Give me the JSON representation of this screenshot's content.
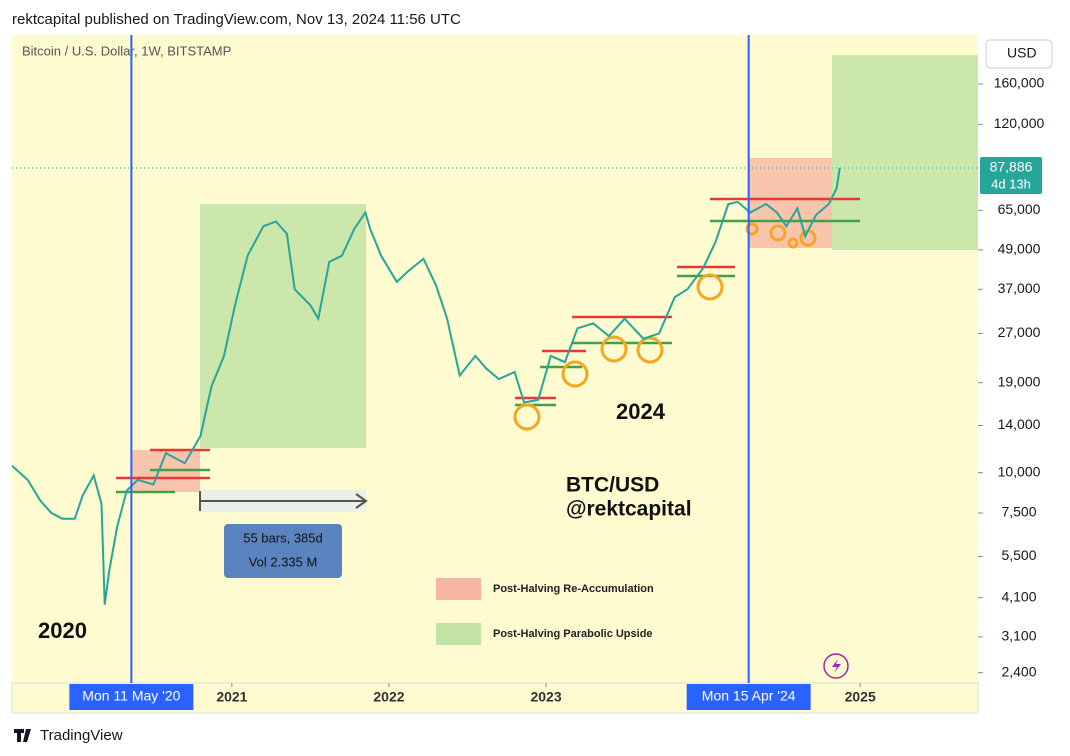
{
  "header": {
    "publisher": "rektcapital published on TradingView.com, Nov 13, 2024 11:56 UTC"
  },
  "chart_data": {
    "type": "line",
    "title": "Bitcoin / U.S. Dollar, 1W, BITSTAMP",
    "y_axis_label": "USD",
    "log_scale_y": true,
    "x": [
      2019.6,
      2019.7,
      2019.78,
      2019.85,
      2019.92,
      2020.0,
      2020.05,
      2020.12,
      2020.17,
      2020.19,
      2020.22,
      2020.27,
      2020.33,
      2020.4,
      2020.5,
      2020.58,
      2020.7,
      2020.8,
      2020.87,
      2020.95,
      2021.02,
      2021.1,
      2021.2,
      2021.28,
      2021.35,
      2021.4,
      2021.5,
      2021.55,
      2021.62,
      2021.7,
      2021.78,
      2021.85,
      2021.88,
      2021.95,
      2022.05,
      2022.12,
      2022.22,
      2022.3,
      2022.37,
      2022.45,
      2022.55,
      2022.62,
      2022.7,
      2022.8,
      2022.86,
      2022.95,
      2023.03,
      2023.12,
      2023.2,
      2023.3,
      2023.4,
      2023.5,
      2023.62,
      2023.72,
      2023.82,
      2023.9,
      2024.0,
      2024.08,
      2024.16,
      2024.22,
      2024.3,
      2024.4,
      2024.47,
      2024.53,
      2024.6,
      2024.65,
      2024.72,
      2024.8,
      2024.85,
      2024.87
    ],
    "series": [
      {
        "color": "#26a69a",
        "values": [
          10500,
          9500,
          8200,
          7500,
          7200,
          7200,
          8500,
          9800,
          8000,
          3900,
          5000,
          6800,
          8800,
          9500,
          9200,
          11500,
          10700,
          13000,
          18500,
          23000,
          33000,
          47000,
          58000,
          60000,
          55000,
          37000,
          33000,
          30000,
          45000,
          47000,
          57000,
          64000,
          57000,
          47000,
          39000,
          42000,
          46000,
          38000,
          30000,
          20000,
          23000,
          21000,
          19500,
          20500,
          16500,
          16800,
          23000,
          22000,
          28000,
          29000,
          26500,
          30000,
          26000,
          27000,
          35000,
          37000,
          43000,
          52000,
          68000,
          69000,
          64000,
          68000,
          64000,
          58000,
          66000,
          54000,
          63000,
          68000,
          76000,
          88000
        ]
      }
    ],
    "xlim": [
      2019.6,
      2025.75
    ],
    "xticks": [
      2021,
      2022,
      2023,
      2025
    ],
    "ylim": [
      2230,
      227000
    ],
    "yticks": [
      {
        "value": 2400,
        "label": "2,400"
      },
      {
        "value": 3100,
        "label": "3,100"
      },
      {
        "value": 4100,
        "label": "4,100"
      },
      {
        "value": 5500,
        "label": "5,500"
      },
      {
        "value": 7500,
        "label": "7,500"
      },
      {
        "value": 10000,
        "label": "10,000"
      },
      {
        "value": 14000,
        "label": "14,000"
      },
      {
        "value": 19000,
        "label": "19,000"
      },
      {
        "value": 27000,
        "label": "27,000"
      },
      {
        "value": 37000,
        "label": "37,000"
      },
      {
        "value": 49000,
        "label": "49,000"
      },
      {
        "value": 65000,
        "label": "65,000"
      },
      {
        "value": 120000,
        "label": "120,000"
      },
      {
        "value": 160000,
        "label": "160,000"
      }
    ],
    "last_price": {
      "value": 87886,
      "label": "87,886",
      "countdown": "4d 13h",
      "color": "#26a69a"
    },
    "halvings": [
      {
        "x": 2020.36,
        "label": "Mon 11 May '20"
      },
      {
        "x": 2024.29,
        "label": "Mon 15 Apr '24"
      }
    ],
    "halving_color": "#2962ff",
    "annotations": {
      "year_2020": "2020",
      "year_2024": "2024",
      "pair": "BTC/USD",
      "handle": "@rektcapital",
      "measure_bars": "55 bars, 385d",
      "measure_vol": "Vol 2.335 M"
    },
    "legend": [
      {
        "name": "Post-Halving Re-Accumulation",
        "color": "#f7b7a3"
      },
      {
        "name": "Post-Halving Parabolic Upside",
        "color": "#c3e3a4"
      }
    ]
  },
  "footer": {
    "brand": "TradingView"
  }
}
